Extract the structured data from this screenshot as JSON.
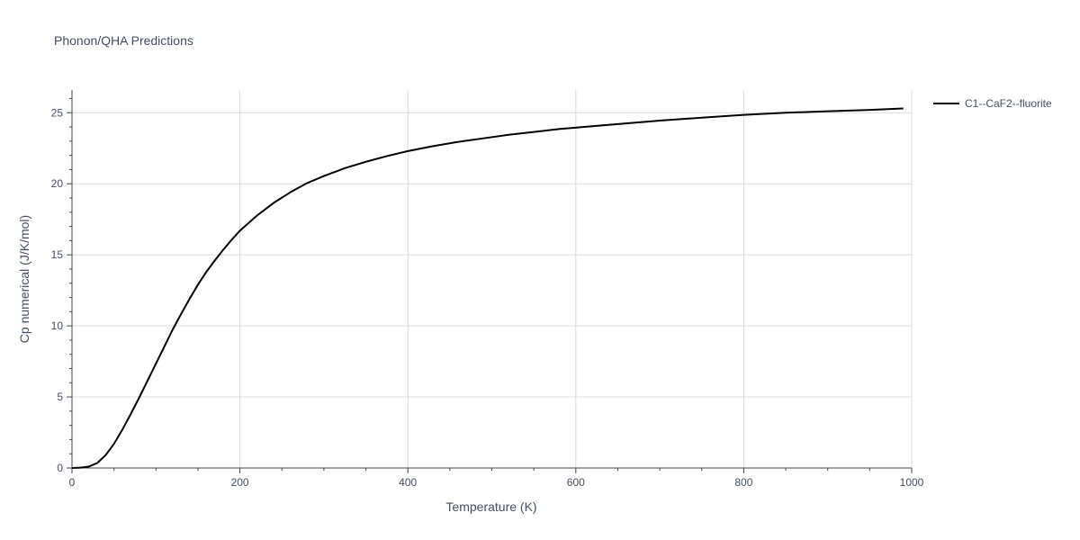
{
  "chart_data": {
    "type": "line",
    "title": "Phonon/QHA Predictions",
    "xlabel": "Temperature (K)",
    "ylabel": "Cp numerical (J/K/mol)",
    "xlim": [
      0,
      1000
    ],
    "ylim": [
      0,
      26.6
    ],
    "x_ticks": [
      0,
      200,
      400,
      600,
      800,
      1000
    ],
    "y_ticks": [
      0,
      5,
      10,
      15,
      20,
      25
    ],
    "x_tick_labels": [
      "0",
      "200",
      "400",
      "600",
      "800",
      "1000"
    ],
    "y_tick_labels": [
      "0",
      "5",
      "10",
      "15",
      "20",
      "25"
    ],
    "grid": true,
    "legend_position": "top-right",
    "series": [
      {
        "name": "C1--CaF2--fluorite",
        "color": "#000000",
        "x": [
          0,
          10,
          20,
          30,
          40,
          50,
          60,
          70,
          80,
          90,
          100,
          110,
          120,
          130,
          140,
          150,
          160,
          170,
          180,
          190,
          200,
          220,
          240,
          260,
          280,
          300,
          325,
          350,
          375,
          400,
          430,
          460,
          490,
          520,
          550,
          580,
          610,
          650,
          700,
          750,
          800,
          850,
          900,
          950,
          990
        ],
        "y": [
          0,
          0.02,
          0.1,
          0.35,
          0.9,
          1.7,
          2.7,
          3.8,
          4.95,
          6.15,
          7.35,
          8.55,
          9.75,
          10.85,
          11.9,
          12.9,
          13.8,
          14.6,
          15.35,
          16.05,
          16.7,
          17.75,
          18.65,
          19.4,
          20.05,
          20.55,
          21.1,
          21.55,
          21.95,
          22.3,
          22.65,
          22.95,
          23.2,
          23.45,
          23.65,
          23.85,
          24.0,
          24.2,
          24.45,
          24.65,
          24.85,
          25.0,
          25.1,
          25.2,
          25.3
        ]
      }
    ]
  }
}
